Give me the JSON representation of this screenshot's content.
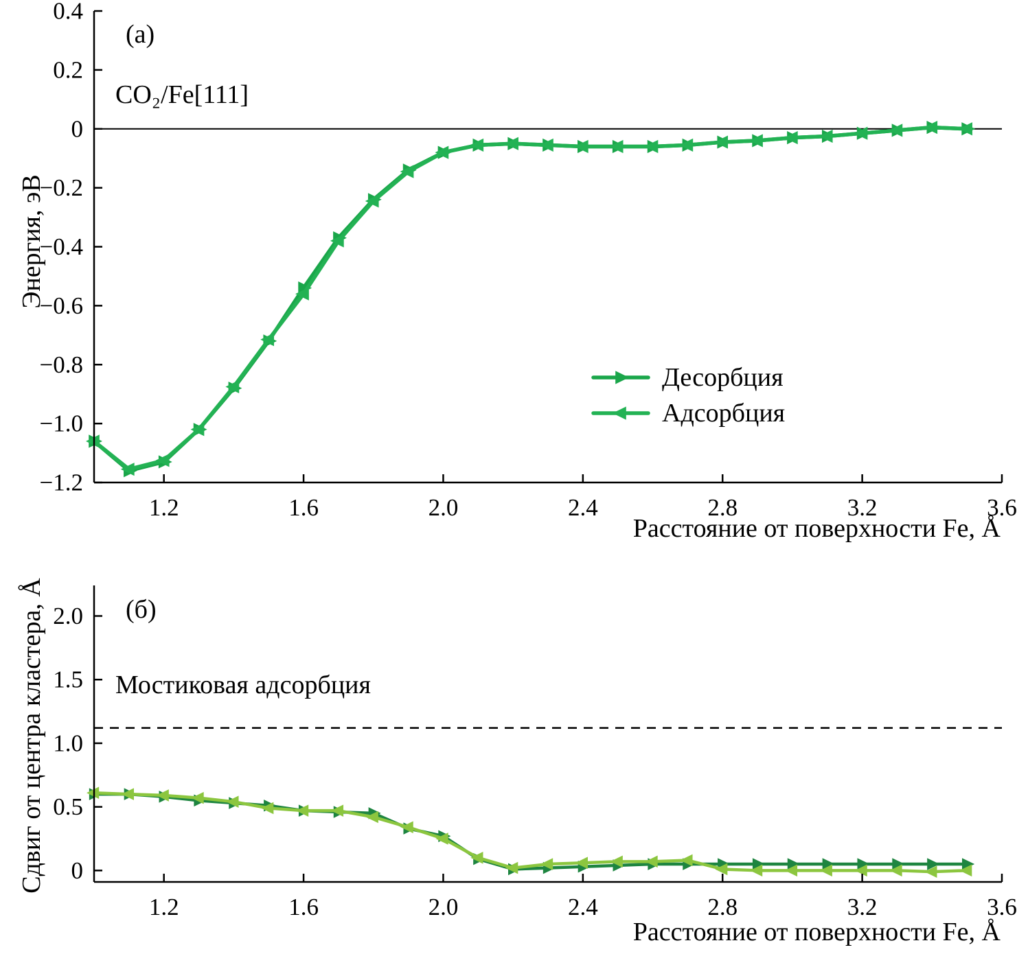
{
  "chart_data": [
    {
      "type": "line",
      "panel_label": "(а)",
      "annotation": "CO₂/Fe[111]",
      "xlabel": "Расстояние от поверхности Fe, Å",
      "ylabel": "Энергия, эВ",
      "xlim": [
        1.0,
        3.6
      ],
      "ylim": [
        -1.2,
        0.4
      ],
      "xticks": [
        1.2,
        1.6,
        2.0,
        2.4,
        2.8,
        3.2,
        3.6
      ],
      "xtick_labels": [
        "1.2",
        "1.6",
        "2.0",
        "2.4",
        "2.8",
        "3.2",
        "3.6"
      ],
      "yticks": [
        0.4,
        0.2,
        0,
        -0.2,
        -0.4,
        -0.6,
        -0.8,
        -1.0,
        -1.2
      ],
      "ytick_labels": [
        "0.4",
        "0.2",
        "0",
        "−0.2",
        "−0.4",
        "−0.6",
        "−0.8",
        "−1.0",
        "−1.2"
      ],
      "zero_line": true,
      "grid": false,
      "legend_position": "center-right",
      "x": [
        1.0,
        1.1,
        1.2,
        1.3,
        1.4,
        1.5,
        1.6,
        1.7,
        1.8,
        1.9,
        2.0,
        2.1,
        2.2,
        2.3,
        2.4,
        2.5,
        2.6,
        2.7,
        2.8,
        2.9,
        3.0,
        3.1,
        3.2,
        3.3,
        3.4,
        3.5
      ],
      "series": [
        {
          "name": "Десорбция",
          "marker": "right",
          "color": "#1aa64a",
          "values": [
            -1.06,
            -1.16,
            -1.13,
            -1.02,
            -0.88,
            -0.72,
            -0.54,
            -0.37,
            -0.24,
            -0.14,
            -0.08,
            -0.055,
            -0.05,
            -0.055,
            -0.06,
            -0.06,
            -0.06,
            -0.055,
            -0.045,
            -0.04,
            -0.03,
            -0.025,
            -0.015,
            -0.005,
            0.005,
            0.0
          ]
        },
        {
          "name": "Адсорбция",
          "marker": "left",
          "color": "#23b254",
          "values": [
            -1.06,
            -1.155,
            -1.125,
            -1.02,
            -0.875,
            -0.715,
            -0.56,
            -0.38,
            -0.245,
            -0.145,
            -0.08,
            -0.055,
            -0.05,
            -0.055,
            -0.06,
            -0.06,
            -0.06,
            -0.055,
            -0.045,
            -0.04,
            -0.03,
            -0.025,
            -0.015,
            -0.005,
            0.005,
            0.0
          ]
        }
      ]
    },
    {
      "type": "line",
      "panel_label": "(б)",
      "xlabel": "Расстояние от поверхности Fe, Å",
      "ylabel": "Сдвиг от центра кластера, Å",
      "xlim": [
        1.0,
        3.6
      ],
      "ylim": [
        -0.09,
        2.24
      ],
      "xticks": [
        1.2,
        1.6,
        2.0,
        2.4,
        2.8,
        3.2,
        3.6
      ],
      "xtick_labels": [
        "1.2",
        "1.6",
        "2.0",
        "2.4",
        "2.8",
        "3.2",
        "3.6"
      ],
      "yticks": [
        0,
        0.5,
        1.0,
        1.5,
        2.0
      ],
      "ytick_labels": [
        "0",
        "0.5",
        "1.0",
        "1.5",
        "2.0"
      ],
      "zero_line": false,
      "grid": false,
      "dashed_line": {
        "y": 1.12,
        "label": "Мостиковая адсорбция"
      },
      "x": [
        1.0,
        1.1,
        1.2,
        1.3,
        1.4,
        1.5,
        1.6,
        1.7,
        1.8,
        1.9,
        2.0,
        2.1,
        2.2,
        2.3,
        2.4,
        2.5,
        2.6,
        2.7,
        2.8,
        2.9,
        3.0,
        3.1,
        3.2,
        3.3,
        3.4,
        3.5
      ],
      "series": [
        {
          "name": "Десорбция",
          "marker": "right",
          "color": "#1e8540",
          "values": [
            0.6,
            0.6,
            0.58,
            0.55,
            0.53,
            0.51,
            0.47,
            0.46,
            0.45,
            0.33,
            0.27,
            0.09,
            0.01,
            0.02,
            0.03,
            0.04,
            0.05,
            0.05,
            0.05,
            0.05,
            0.05,
            0.05,
            0.05,
            0.05,
            0.05,
            0.05
          ]
        },
        {
          "name": "Адсорбция",
          "marker": "left",
          "color": "#8cc63f",
          "values": [
            0.61,
            0.6,
            0.59,
            0.57,
            0.54,
            0.49,
            0.47,
            0.47,
            0.42,
            0.34,
            0.25,
            0.1,
            0.02,
            0.05,
            0.06,
            0.07,
            0.07,
            0.08,
            0.01,
            0.0,
            0.0,
            0.0,
            0.0,
            0.0,
            -0.01,
            0.0
          ]
        }
      ]
    }
  ]
}
